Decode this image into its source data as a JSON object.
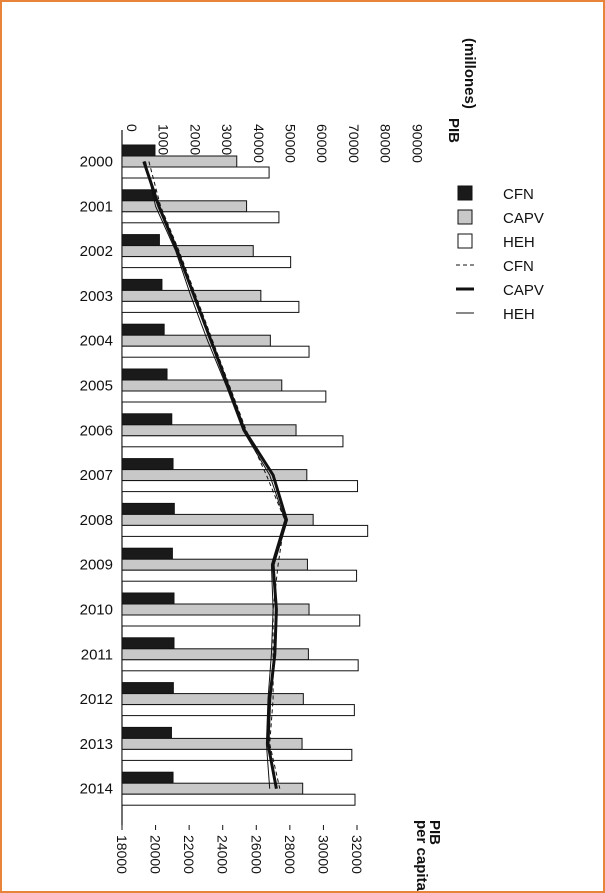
{
  "chart_data": {
    "type": "bar",
    "orientation": "horizontal",
    "categories": [
      "2000",
      "2001",
      "2002",
      "2003",
      "2004",
      "2005",
      "2006",
      "2007",
      "2008",
      "2009",
      "2010",
      "2011",
      "2012",
      "2013",
      "2014"
    ],
    "top_axis": {
      "label_line1": "PIB",
      "label_line2": "(millones)",
      "range": [
        0,
        90000
      ],
      "ticks": [
        "0",
        "10000",
        "20000",
        "30000",
        "40000",
        "50000",
        "60000",
        "70000",
        "80000",
        "90000"
      ]
    },
    "bottom_axis": {
      "label_line1": "PIB",
      "label_line2": "per capita",
      "range": [
        18000,
        32000
      ],
      "ticks": [
        "18000",
        "20000",
        "22000",
        "24000",
        "26000",
        "28000",
        "30000",
        "32000"
      ]
    },
    "bar_series": [
      {
        "name": "CFN",
        "color": "#1a1a1a",
        "values": [
          10400,
          10600,
          11800,
          12600,
          13300,
          14200,
          15700,
          16100,
          16500,
          15900,
          16400,
          16400,
          16200,
          15600,
          16100
        ]
      },
      {
        "name": "CAPV",
        "color": "#c8c8c8",
        "values": [
          36200,
          39300,
          41400,
          43800,
          46800,
          50400,
          54900,
          58300,
          60300,
          58500,
          59000,
          58800,
          57200,
          56800,
          57000
        ]
      },
      {
        "name": "HEH",
        "color": "#ffffff",
        "values": [
          46400,
          49500,
          53200,
          55800,
          59000,
          64300,
          69700,
          74300,
          77500,
          74000,
          75000,
          74500,
          73300,
          72500,
          73500
        ]
      }
    ],
    "line_series": [
      {
        "name": "CFN",
        "style": "dashed",
        "values": [
          19600,
          20300,
          21400,
          22400,
          23400,
          24400,
          25400,
          26600,
          27700,
          27300,
          27000,
          27000,
          27000,
          26800,
          27400
        ]
      },
      {
        "name": "CAPV",
        "style": "thick",
        "values": [
          19300,
          20200,
          21300,
          22300,
          23300,
          24300,
          25300,
          27000,
          27800,
          27000,
          27200,
          27100,
          26800,
          26700,
          27200
        ]
      },
      {
        "name": "HEH",
        "style": "thin",
        "values": [
          19400,
          20000,
          21200,
          22100,
          23100,
          24200,
          25200,
          26800,
          27700,
          26900,
          27000,
          26900,
          26700,
          26600,
          26800
        ]
      }
    ],
    "legend_position": "right",
    "grid": false
  }
}
